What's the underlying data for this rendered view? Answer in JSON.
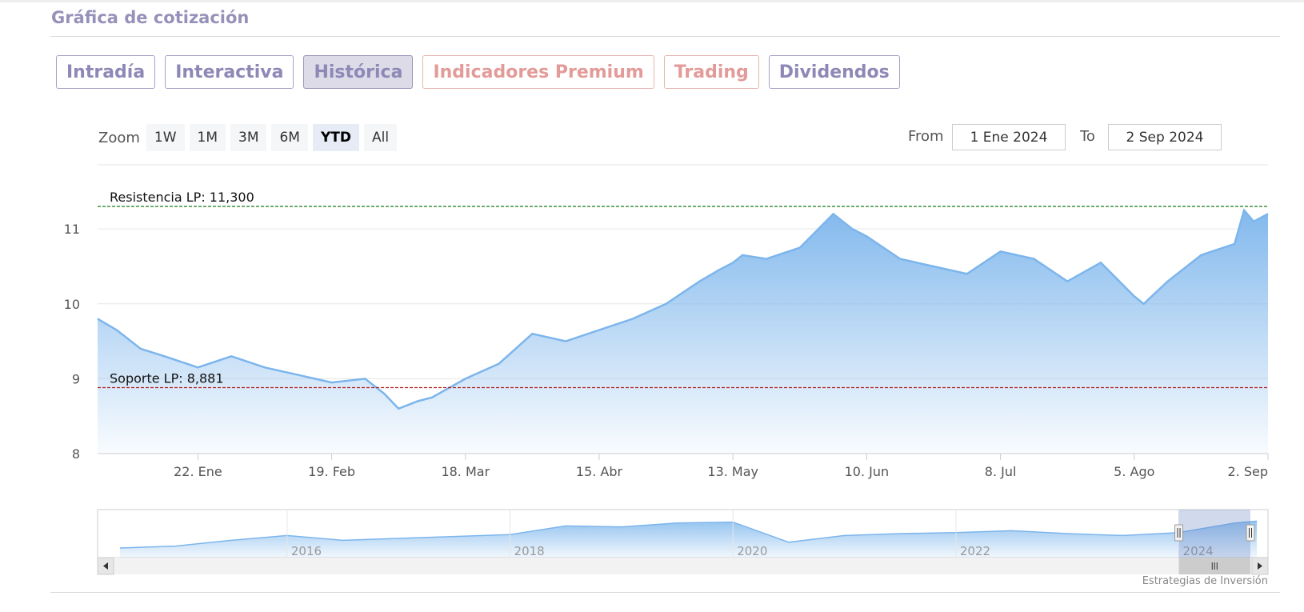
{
  "header": {
    "title": "Gráfica de cotización"
  },
  "tabs": [
    {
      "label": "Intradía",
      "state": "normal"
    },
    {
      "label": "Interactiva",
      "state": "normal"
    },
    {
      "label": "Histórica",
      "state": "active"
    },
    {
      "label": "Indicadores Premium",
      "state": "premium"
    },
    {
      "label": "Trading",
      "state": "premium"
    },
    {
      "label": "Dividendos",
      "state": "normal"
    }
  ],
  "zoom": {
    "label": "Zoom",
    "options": [
      "1W",
      "1M",
      "3M",
      "6M",
      "YTD",
      "All"
    ],
    "selected": "YTD"
  },
  "range": {
    "from_label": "From",
    "from_value": "1 Ene 2024",
    "to_label": "To",
    "to_value": "2 Sep 2024"
  },
  "credit": "Estrategias de Inversión",
  "colors": {
    "accent": "#9691b9",
    "premium": "#e29b98",
    "series_line": "#7cb5ec",
    "resistance": "#2e8b2e",
    "support": "#b22222"
  },
  "icons": {
    "scroll_left": "chevron-left-icon",
    "scroll_right": "chevron-right-icon",
    "scroll_grip": "grip-icon",
    "handle": "handle-icon"
  },
  "chart_data": {
    "type": "area",
    "title": "",
    "xlabel": "",
    "ylabel": "",
    "ylim": [
      8,
      11.6
    ],
    "y_ticks": [
      8,
      9,
      10,
      11
    ],
    "x_ticks": [
      "22. Ene",
      "19. Feb",
      "18. Mar",
      "15. Abr",
      "13. May",
      "10. Jun",
      "8. Jul",
      "5. Ago",
      "2. Sep"
    ],
    "grid": true,
    "legend": "none",
    "x": [
      "2024-01-01",
      "2024-01-05",
      "2024-01-10",
      "2024-01-15",
      "2024-01-22",
      "2024-01-29",
      "2024-02-05",
      "2024-02-12",
      "2024-02-19",
      "2024-02-26",
      "2024-03-01",
      "2024-03-04",
      "2024-03-08",
      "2024-03-11",
      "2024-03-18",
      "2024-03-25",
      "2024-04-01",
      "2024-04-08",
      "2024-04-15",
      "2024-04-22",
      "2024-04-29",
      "2024-05-06",
      "2024-05-10",
      "2024-05-13",
      "2024-05-15",
      "2024-05-20",
      "2024-05-27",
      "2024-06-03",
      "2024-06-07",
      "2024-06-10",
      "2024-06-17",
      "2024-06-24",
      "2024-07-01",
      "2024-07-08",
      "2024-07-15",
      "2024-07-22",
      "2024-07-29",
      "2024-08-05",
      "2024-08-07",
      "2024-08-12",
      "2024-08-19",
      "2024-08-26",
      "2024-08-28",
      "2024-08-30",
      "2024-09-02"
    ],
    "series": [
      {
        "values": [
          9.8,
          9.65,
          9.4,
          9.3,
          9.15,
          9.3,
          9.15,
          9.05,
          8.95,
          9.0,
          8.8,
          8.6,
          8.7,
          8.75,
          9.0,
          9.2,
          9.6,
          9.5,
          9.65,
          9.8,
          10.0,
          10.3,
          10.45,
          10.55,
          10.65,
          10.6,
          10.75,
          11.2,
          11.0,
          10.9,
          10.6,
          10.5,
          10.4,
          10.7,
          10.6,
          10.3,
          10.55,
          10.1,
          10.0,
          10.3,
          10.65,
          10.8,
          11.25,
          11.1,
          11.2
        ]
      }
    ],
    "resistance": {
      "label": "Resistencia LP: 11,300",
      "value": 11.3
    },
    "support": {
      "label": "Soporte LP: 8,881",
      "value": 8.881
    },
    "navigator": {
      "x_ticks": [
        "2016",
        "2018",
        "2020",
        "2022",
        "2024"
      ],
      "years": [
        2014.5,
        2015,
        2015.5,
        2016,
        2016.5,
        2017,
        2017.5,
        2018,
        2018.5,
        2019,
        2019.5,
        2020,
        2020.5,
        2021,
        2021.5,
        2022,
        2022.5,
        2023,
        2023.5,
        2024,
        2024.5,
        2024.7
      ],
      "values": [
        7.0,
        7.2,
        7.8,
        8.3,
        7.8,
        8.0,
        8.2,
        8.4,
        9.3,
        9.2,
        9.6,
        9.7,
        7.6,
        8.3,
        8.5,
        8.6,
        8.8,
        8.5,
        8.3,
        8.6,
        9.6,
        9.8
      ]
    }
  }
}
